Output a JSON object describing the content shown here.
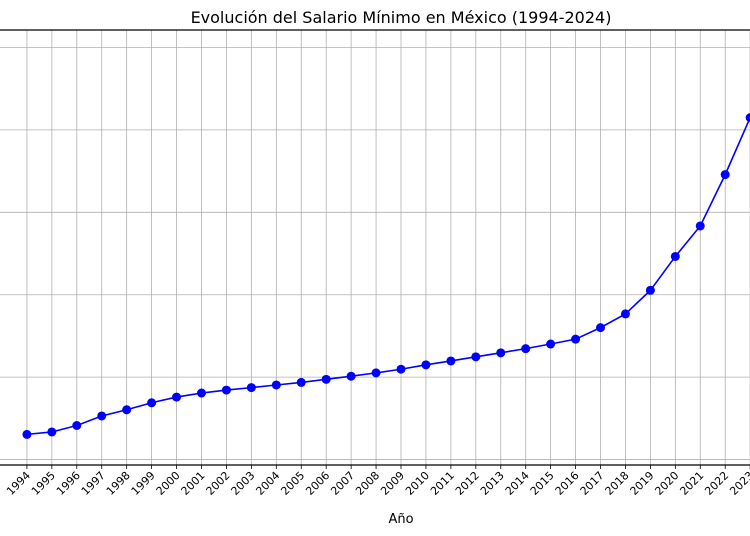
{
  "chart_data": {
    "type": "line",
    "title": "Evolución del Salario Mínimo en México (1994-2024)",
    "xlabel": "Año",
    "ylabel": "",
    "x": [
      1994,
      1995,
      1996,
      1997,
      1998,
      1999,
      2000,
      2001,
      2002,
      2003,
      2004,
      2005,
      2006,
      2007,
      2008,
      2009,
      2010,
      2011,
      2012,
      2013,
      2014,
      2015,
      2016,
      2017,
      2018,
      2019,
      2020,
      2021,
      2022,
      2023,
      2024
    ],
    "values": [
      15.27,
      16.74,
      20.66,
      26.45,
      30.2,
      34.45,
      37.9,
      40.35,
      42.15,
      43.65,
      45.24,
      46.8,
      48.67,
      50.57,
      52.59,
      54.8,
      57.46,
      59.82,
      62.33,
      64.76,
      67.29,
      70.1,
      73.04,
      80.04,
      88.36,
      102.68,
      123.22,
      141.7,
      172.87,
      207.44,
      248.93
    ],
    "xlim": [
      1992.5,
      2025.5
    ],
    "ylim": [
      -3.3,
      260.6
    ],
    "y_gridlines": [
      0,
      50,
      100,
      150,
      200,
      250
    ],
    "grid": true,
    "line_color": "#0000ff",
    "marker": "circle",
    "x_tick_rotation": 45
  }
}
